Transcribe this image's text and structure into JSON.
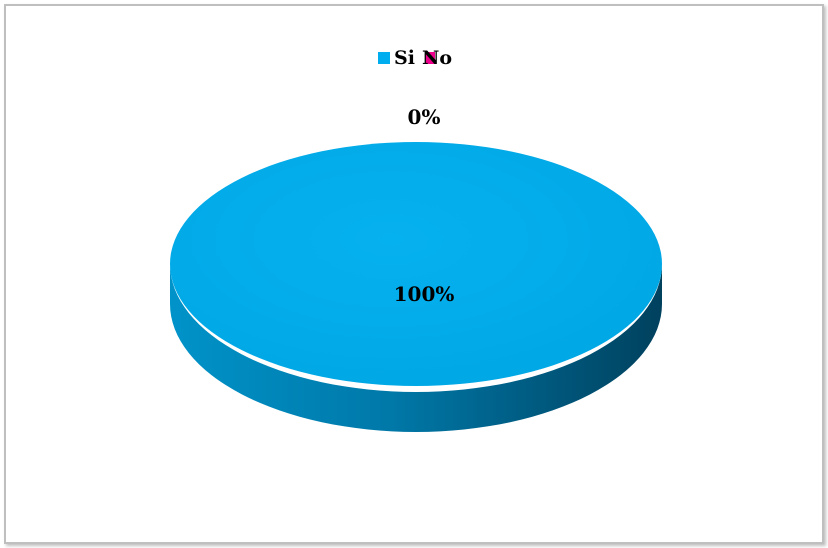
{
  "chart_data": {
    "type": "pie",
    "title": "",
    "categories": [
      "Si",
      "No"
    ],
    "values": [
      100,
      0
    ],
    "data_labels": [
      "100%",
      "0%"
    ],
    "colors": [
      "#00aeef",
      "#ec008c"
    ],
    "legend": {
      "position": "top",
      "entries": [
        "Si",
        "No"
      ]
    },
    "style": "3d"
  }
}
